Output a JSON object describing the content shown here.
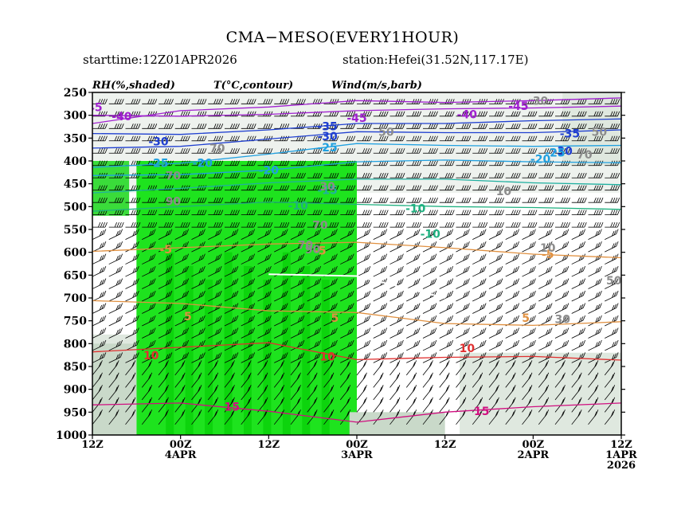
{
  "header": {
    "title": "CMA−MESO(EVERY1HOUR)",
    "starttime": "starttime:12Z01APR2026",
    "station": "station:Hefei(31.52N,117.17E)"
  },
  "chart_data": {
    "type": "heatmap",
    "panel_labels": [
      "RH(%,shaded)",
      "T(°C,contour)",
      "Wind(m/s,barb)"
    ],
    "y_axis": {
      "ticks": [
        250,
        300,
        350,
        400,
        450,
        500,
        550,
        600,
        650,
        700,
        750,
        800,
        850,
        900,
        950,
        1000
      ],
      "ylim": [
        1000,
        250
      ]
    },
    "x_axis": {
      "ticks": [
        {
          "line1": "12Z",
          "line2": "",
          "line3": ""
        },
        {
          "line1": "00Z",
          "line2": "4APR",
          "line3": ""
        },
        {
          "line1": "12Z",
          "line2": "",
          "line3": ""
        },
        {
          "line1": "00Z",
          "line2": "3APR",
          "line3": ""
        },
        {
          "line1": "12Z",
          "line2": "",
          "line3": ""
        },
        {
          "line1": "00Z",
          "line2": "2APR",
          "line3": ""
        },
        {
          "line1": "12Z",
          "line2": "1APR",
          "line3": "2026"
        }
      ],
      "reversed_time": true
    },
    "rh_shading": {
      "levels": [
        30,
        50,
        70,
        90
      ],
      "colors": [
        "#e6ebe6",
        "#c5d4c5",
        "#2ee02e",
        "#00e600"
      ],
      "moist_regions": [
        {
          "x_from_hours": 12,
          "x_to_hours": 72,
          "p_top": 400,
          "p_bottom": 1000,
          "rh": 90
        },
        {
          "x_from_hours": 18,
          "x_to_hours": 66,
          "p_top": 450,
          "p_bottom": 1000,
          "rh": 95
        },
        {
          "x_from_hours": 70,
          "x_to_hours": 96,
          "p_top": 950,
          "p_bottom": 1000,
          "rh": 60
        },
        {
          "x_from_hours": 0,
          "x_to_hours": 12,
          "p_top": 800,
          "p_bottom": 1000,
          "rh": 55
        }
      ]
    },
    "temperature_contours": [
      {
        "value": -45,
        "color": "#a020d0",
        "p_at_ticks": [
          318,
          290,
          282,
          268,
          272,
          268,
          262
        ]
      },
      {
        "value": -40,
        "color": "#a020d0",
        "p_at_ticks": [
          300,
          302,
          298,
          290,
          286,
          284,
          280
        ]
      },
      {
        "value": -35,
        "color": "#1f3fd0",
        "p_at_ticks": [
          340,
          342,
          332,
          318,
          318,
          312,
          308
        ]
      },
      {
        "value": -30,
        "color": "#1f3fd0",
        "p_at_ticks": [
          372,
          368,
          352,
          336,
          338,
          338,
          332
        ]
      },
      {
        "value": -25,
        "color": "#20a0e0",
        "p_at_ticks": [
          414,
          405,
          385,
          362,
          366,
          368,
          366
        ]
      },
      {
        "value": -20,
        "color": "#20a0e0",
        "p_at_ticks": [
          432,
          430,
          420,
          402,
          398,
          402,
          404
        ]
      },
      {
        "value": -15,
        "color": "#20b0a0",
        "p_at_ticks": [
          470,
          460,
          448,
          440,
          440,
          448,
          452
        ]
      },
      {
        "value": -10,
        "color": "#20b080",
        "p_at_ticks": [
          510,
          500,
          490,
          495,
          500,
          502,
          506
        ]
      },
      {
        "value": -5,
        "color": "#e09040",
        "p_at_ticks": [
          598,
          590,
          582,
          578,
          590,
          604,
          612
        ]
      },
      {
        "value": 0,
        "color": "#ffffff",
        "p_at_ticks": [
          null,
          null,
          648,
          652,
          700,
          null,
          null
        ]
      },
      {
        "value": 5,
        "color": "#e09040",
        "p_at_ticks": [
          706,
          712,
          728,
          732,
          756,
          760,
          752
        ]
      },
      {
        "value": 10,
        "color": "#e03030",
        "p_at_ticks": [
          818,
          808,
          798,
          835,
          830,
          828,
          836
        ]
      },
      {
        "value": 15,
        "color": "#d01080",
        "p_at_ticks": [
          934,
          930,
          948,
          972,
          950,
          938,
          930
        ]
      }
    ],
    "labels_on_plot": [
      {
        "text": "-45",
        "x_hours": 72,
        "p": 306,
        "color": "#a020d0"
      },
      {
        "text": "-45",
        "x_hours": 116,
        "p": 280,
        "color": "#a020d0"
      },
      {
        "text": "-45",
        "x_hours": 0,
        "p": 282,
        "color": "#a020d0"
      },
      {
        "text": "-40",
        "x_hours": 102,
        "p": 298,
        "color": "#a020d0"
      },
      {
        "text": "-40",
        "x_hours": 8,
        "p": 302,
        "color": "#a020d0"
      },
      {
        "text": "-35",
        "x_hours": 130,
        "p": 340,
        "color": "#1f3fd0"
      },
      {
        "text": "-35",
        "x_hours": 64,
        "p": 324,
        "color": "#1f3fd0"
      },
      {
        "text": "-30",
        "x_hours": 128,
        "p": 378,
        "color": "#1f3fd0"
      },
      {
        "text": "-30",
        "x_hours": 64,
        "p": 346,
        "color": "#1f3fd0"
      },
      {
        "text": "-30",
        "x_hours": 18,
        "p": 357,
        "color": "#1f3fd0"
      },
      {
        "text": "-25",
        "x_hours": 126,
        "p": 382,
        "color": "#20a0e0"
      },
      {
        "text": "-25",
        "x_hours": 64,
        "p": 370,
        "color": "#20a0e0"
      },
      {
        "text": "-25",
        "x_hours": 18,
        "p": 404,
        "color": "#20a0e0"
      },
      {
        "text": "-20",
        "x_hours": 122,
        "p": 396,
        "color": "#20a0e0"
      },
      {
        "text": "-20",
        "x_hours": 48,
        "p": 420,
        "color": "#20a0e0"
      },
      {
        "text": "-20",
        "x_hours": 30,
        "p": 404,
        "color": "#20a0e0"
      },
      {
        "text": "-15",
        "x_hours": 64,
        "p": 464,
        "color": "#20b0a0"
      },
      {
        "text": "-10",
        "x_hours": 88,
        "p": 504,
        "color": "#20b080"
      },
      {
        "text": "-10",
        "x_hours": 56,
        "p": 498,
        "color": "#20b080"
      },
      {
        "text": "-10",
        "x_hours": 92,
        "p": 560,
        "color": "#20b080"
      },
      {
        "text": "-5",
        "x_hours": 62,
        "p": 596,
        "color": "#e09040"
      },
      {
        "text": "-5",
        "x_hours": 20,
        "p": 594,
        "color": "#e09040"
      },
      {
        "text": "-5",
        "x_hours": 124,
        "p": 604,
        "color": "#e09040"
      },
      {
        "text": "5",
        "x_hours": 66,
        "p": 744,
        "color": "#e09040"
      },
      {
        "text": "5",
        "x_hours": 26,
        "p": 740,
        "color": "#e09040"
      },
      {
        "text": "5",
        "x_hours": 118,
        "p": 744,
        "color": "#e09040"
      },
      {
        "text": "10",
        "x_hours": 64,
        "p": 828,
        "color": "#e03030"
      },
      {
        "text": "10",
        "x_hours": 16,
        "p": 826,
        "color": "#e03030"
      },
      {
        "text": "10",
        "x_hours": 102,
        "p": 810,
        "color": "#e03030"
      },
      {
        "text": "15",
        "x_hours": 38,
        "p": 938,
        "color": "#d01080"
      },
      {
        "text": "15",
        "x_hours": 106,
        "p": 948,
        "color": "#d01080"
      },
      {
        "text": "30",
        "x_hours": 122,
        "p": 268,
        "color": "#8c8c8c"
      },
      {
        "text": "30",
        "x_hours": 64,
        "p": 456,
        "color": "#8c8c8c"
      },
      {
        "text": "30",
        "x_hours": 128,
        "p": 746,
        "color": "#8c8c8c"
      },
      {
        "text": "10",
        "x_hours": 112,
        "p": 466,
        "color": "#8c8c8c"
      },
      {
        "text": "50",
        "x_hours": 138,
        "p": 336,
        "color": "#8c8c8c"
      },
      {
        "text": "50",
        "x_hours": 80,
        "p": 336,
        "color": "#8c8c8c"
      },
      {
        "text": "50",
        "x_hours": 142,
        "p": 662,
        "color": "#8c8c8c"
      },
      {
        "text": "70",
        "x_hours": 134,
        "p": 386,
        "color": "#8c8c8c"
      },
      {
        "text": "70",
        "x_hours": 62,
        "p": 540,
        "color": "#8c8c8c"
      },
      {
        "text": "70",
        "x_hours": 58,
        "p": 584,
        "color": "#8c8c8c"
      },
      {
        "text": "70",
        "x_hours": 34,
        "p": 372,
        "color": "#8c8c8c"
      },
      {
        "text": "70",
        "x_hours": 22,
        "p": 432,
        "color": "#8c8c8c"
      },
      {
        "text": "90",
        "x_hours": 60,
        "p": 594,
        "color": "#8c8c8c"
      },
      {
        "text": "90",
        "x_hours": 22,
        "p": 488,
        "color": "#8c8c8c"
      },
      {
        "text": "10",
        "x_hours": 124,
        "p": 590,
        "color": "#8c8c8c"
      }
    ]
  }
}
